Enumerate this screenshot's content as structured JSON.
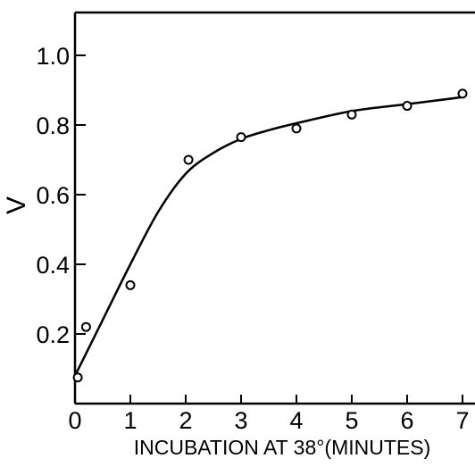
{
  "chart_data": {
    "type": "scatter",
    "xlabel": "INCUBATION AT 38°(MINUTES)",
    "ylabel": "V",
    "xlim": [
      0,
      7
    ],
    "ylim": [
      0,
      1.1
    ],
    "x_ticks": [
      "0",
      "1",
      "2",
      "3",
      "4",
      "5",
      "6",
      "7"
    ],
    "y_ticks": [
      "0.2",
      "0.4",
      "0.6",
      "0.8",
      "1.0"
    ],
    "grid": false,
    "series": [
      {
        "marker": "open-circle",
        "x": [
          0.05,
          0.2,
          1.0,
          2.05,
          3.0,
          4.0,
          5.0,
          6.0,
          7.0
        ],
        "y": [
          0.075,
          0.22,
          0.34,
          0.7,
          0.765,
          0.79,
          0.83,
          0.855,
          0.89
        ]
      }
    ],
    "fitted_curve": {
      "x": [
        0.0,
        0.5,
        1.0,
        1.5,
        2.0,
        2.5,
        3.0,
        3.5,
        4.0,
        5.0,
        6.0,
        7.0
      ],
      "y": [
        0.08,
        0.24,
        0.4,
        0.55,
        0.66,
        0.72,
        0.76,
        0.785,
        0.805,
        0.84,
        0.86,
        0.88
      ]
    }
  }
}
